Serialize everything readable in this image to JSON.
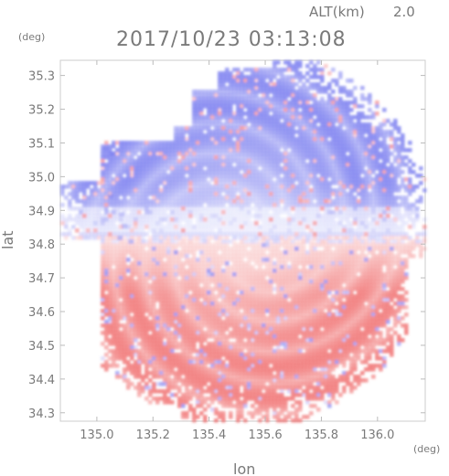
{
  "header": {
    "alt_label": "ALT(km)",
    "alt_value": "2.0",
    "timestamp": "2017/10/23 03:13:08"
  },
  "chart_data": {
    "type": "heatmap",
    "title": "2017/10/23 03:13:08",
    "xlabel": "lon",
    "ylabel": "lat",
    "xunit": "(deg)",
    "yunit": "(deg)",
    "xlim": [
      134.87,
      136.17
    ],
    "ylim": [
      34.275,
      35.345
    ],
    "xticks": [
      135.0,
      135.2,
      135.4,
      135.6,
      135.8,
      136.0
    ],
    "yticks": [
      34.3,
      34.4,
      34.5,
      34.6,
      34.7,
      34.8,
      34.9,
      35.0,
      35.1,
      35.2,
      35.3
    ],
    "xtick_labels": [
      "135.0",
      "135.2",
      "135.4",
      "135.6",
      "135.8",
      "136.0"
    ],
    "ytick_labels": [
      "34.3",
      "34.4",
      "34.5",
      "34.6",
      "34.7",
      "34.8",
      "34.9",
      "35.0",
      "35.1",
      "35.2",
      "35.3"
    ],
    "grid": false,
    "radar_center": {
      "lon": 135.52,
      "lat": 34.82
    },
    "colors": {
      "toward": "#6f73ee",
      "away": "#f06e6e",
      "neutral": "#f4f4fb",
      "frame": "#c8c8c8"
    }
  }
}
